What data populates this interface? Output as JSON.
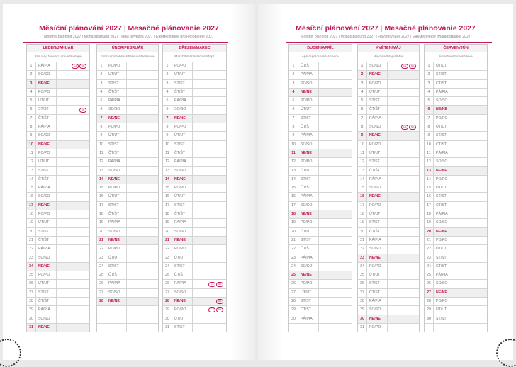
{
  "pages": [
    {
      "title_cz": "Měsíční plánování 2027",
      "title_sk": "Mesačné plánovanie 2027",
      "subtitle": "Monthly planning 2027 | Monatsplanung 2027 | Havi tervezés 2027 | Ежемесячное планирование 2027",
      "months": [
        {
          "name": "LEDEN/JANUÁR",
          "sub": "January/Januar/Január/Январь",
          "start": 4,
          "days": 31,
          "badges": {
            "1": [
              "CZ",
              "SK"
            ],
            "6": [
              "SK"
            ]
          }
        },
        {
          "name": "ÚNOR/FEBRUÁR",
          "sub": "February/Februar/Február/Февраль",
          "start": 0,
          "days": 28,
          "badges": {}
        },
        {
          "name": "BŘEZEN/MAREC",
          "sub": "March/März/Március/Март",
          "start": 0,
          "days": 31,
          "badges": {
            "26": [
              "CZ",
              "SK"
            ],
            "28": [
              "SK"
            ],
            "29": [
              "CZ",
              "SK"
            ]
          }
        }
      ]
    },
    {
      "title_cz": "Měsíční plánování 2027",
      "title_sk": "Mesačné plánovanie 2027",
      "subtitle": "Monthly planning 2027 | Monatsplanung 2027 | Havi tervezés 2027 | Ежемесячное планирование 2027",
      "months": [
        {
          "name": "DUBEN/APRÍL",
          "sub": "April/April/Április/Апрель",
          "start": 3,
          "days": 30,
          "badges": {}
        },
        {
          "name": "KVĚTEN/MÁJ",
          "sub": "May/Mai/Május/Май",
          "start": 5,
          "days": 31,
          "badges": {
            "1": [
              "CZ",
              "SK"
            ],
            "8": [
              "CZ",
              "SK"
            ]
          }
        },
        {
          "name": "ČERVEN/JÚN",
          "sub": "June/Juni/Június/Июнь",
          "start": 1,
          "days": 30,
          "badges": {}
        }
      ]
    }
  ],
  "weekdays": [
    "PO/PO",
    "ÚT/UT",
    "ST/ST",
    "ČT/ŠT",
    "PÁ/PIA",
    "SO/SO",
    "NE/NE"
  ],
  "colors": {
    "accent": "#c2185b",
    "sunday_bg": "#efefef",
    "grid": "#d4d4d4"
  }
}
